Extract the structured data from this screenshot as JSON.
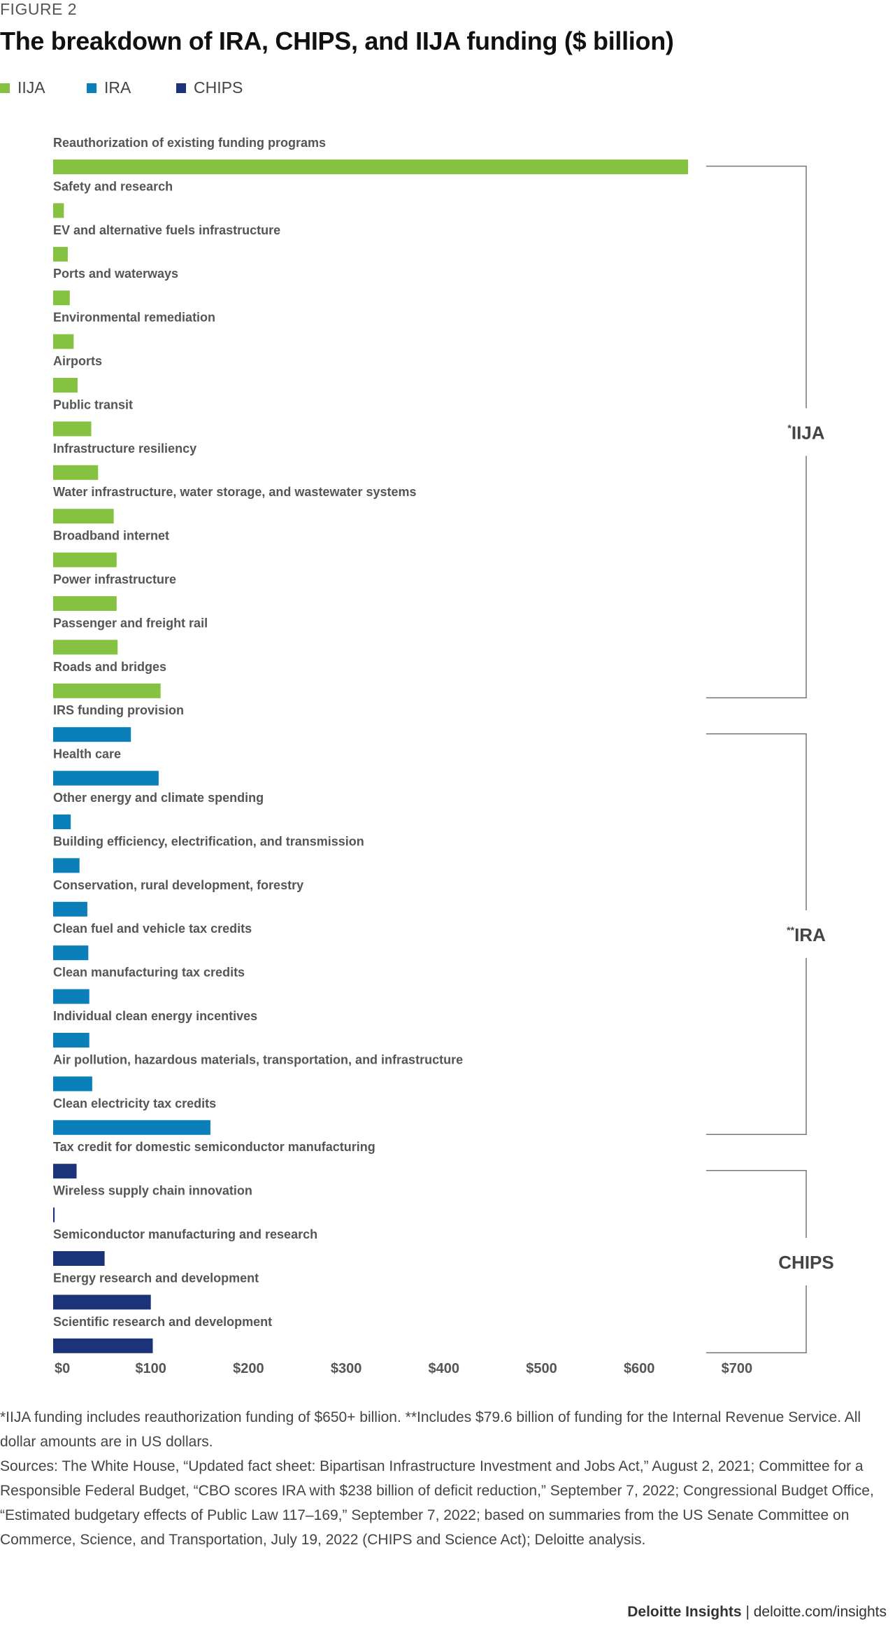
{
  "figure_label": "FIGURE 2",
  "title": "The breakdown of IRA, CHIPS, and IIJA funding ($ billion)",
  "legend": [
    {
      "name": "IIJA",
      "color": "#86c242"
    },
    {
      "name": "IRA",
      "color": "#0b7fba"
    },
    {
      "name": "CHIPS",
      "color": "#1b3479"
    }
  ],
  "chart_data": {
    "type": "bar",
    "orientation": "horizontal",
    "xlim": [
      0,
      700
    ],
    "ticks": [
      {
        "value": 0,
        "label": "$0"
      },
      {
        "value": 100,
        "label": "$100"
      },
      {
        "value": 200,
        "label": "$200"
      },
      {
        "value": 300,
        "label": "$300"
      },
      {
        "value": 400,
        "label": "$400"
      },
      {
        "value": 500,
        "label": "$500"
      },
      {
        "value": 600,
        "label": "$600"
      },
      {
        "value": 700,
        "label": "$700"
      }
    ],
    "categories": [
      {
        "label": "Reauthorization of existing funding programs",
        "value": 650,
        "group": "IIJA"
      },
      {
        "label": "Safety and research",
        "value": 11,
        "group": "IIJA"
      },
      {
        "label": "EV and alternative fuels infrastructure",
        "value": 15,
        "group": "IIJA"
      },
      {
        "label": "Ports and waterways",
        "value": 17,
        "group": "IIJA"
      },
      {
        "label": "Environmental remediation",
        "value": 21,
        "group": "IIJA"
      },
      {
        "label": "Airports",
        "value": 25,
        "group": "IIJA"
      },
      {
        "label": "Public transit",
        "value": 39,
        "group": "IIJA"
      },
      {
        "label": "Infrastructure resiliency",
        "value": 46,
        "group": "IIJA"
      },
      {
        "label": "Water infrastructure, water storage, and wastewater systems",
        "value": 62,
        "group": "IIJA"
      },
      {
        "label": "Broadband internet",
        "value": 65,
        "group": "IIJA"
      },
      {
        "label": "Power infrastructure",
        "value": 65,
        "group": "IIJA"
      },
      {
        "label": "Passenger and freight rail",
        "value": 66,
        "group": "IIJA"
      },
      {
        "label": "Roads and bridges",
        "value": 110,
        "group": "IIJA"
      },
      {
        "label": "IRS funding provision",
        "value": 79.6,
        "group": "IRA"
      },
      {
        "label": "Health care",
        "value": 108,
        "group": "IRA"
      },
      {
        "label": "Other energy and climate spending",
        "value": 18,
        "group": "IRA"
      },
      {
        "label": "Building efficiency, electrification, and transmission",
        "value": 27,
        "group": "IRA"
      },
      {
        "label": "Conservation, rural development, forestry",
        "value": 35,
        "group": "IRA"
      },
      {
        "label": "Clean fuel and vehicle tax credits",
        "value": 36,
        "group": "IRA"
      },
      {
        "label": "Clean manufacturing tax credits",
        "value": 37,
        "group": "IRA"
      },
      {
        "label": "Individual clean energy incentives",
        "value": 37,
        "group": "IRA"
      },
      {
        "label": "Air pollution, hazardous materials, transportation, and infrastructure",
        "value": 40,
        "group": "IRA"
      },
      {
        "label": "Clean electricity tax credits",
        "value": 161,
        "group": "IRA"
      },
      {
        "label": "Tax credit for domestic semiconductor manufacturing",
        "value": 24,
        "group": "CHIPS"
      },
      {
        "label": "Wireless supply chain innovation",
        "value": 1.5,
        "group": "CHIPS"
      },
      {
        "label": "Semiconductor manufacturing and research",
        "value": 52.7,
        "group": "CHIPS"
      },
      {
        "label": "Energy research and development",
        "value": 100,
        "group": "CHIPS"
      },
      {
        "label": "Scientific research and development",
        "value": 102,
        "group": "CHIPS"
      }
    ],
    "group_brackets": [
      {
        "prefix": "*",
        "label": "IIJA",
        "group": "IIJA"
      },
      {
        "prefix": "**",
        "label": "IRA",
        "group": "IRA"
      },
      {
        "prefix": "",
        "label": "CHIPS",
        "group": "CHIPS"
      }
    ]
  },
  "notes": {
    "footnote": "*IIJA funding includes reauthorization funding of $650+ billion. **Includes $79.6 billion of funding for the Internal Revenue Service. All dollar amounts are in US dollars.",
    "sources": "Sources: The White House, “Updated fact sheet: Bipartisan Infrastructure Investment and Jobs Act,” August 2, 2021; Committee for a Responsible Federal Budget, “CBO scores IRA with $238 billion of deficit reduction,” September 7, 2022; Congressional Budget Office, “Estimated budgetary effects of Public Law 117–169,” September 7, 2022; based on summaries from the US Senate Committee on Commerce, Science, and Transportation, July 19, 2022 (CHIPS and Science Act); Deloitte analysis."
  },
  "footer": {
    "brand": "Deloitte Insights",
    "separator": " | ",
    "url": "deloitte.com/insights"
  }
}
